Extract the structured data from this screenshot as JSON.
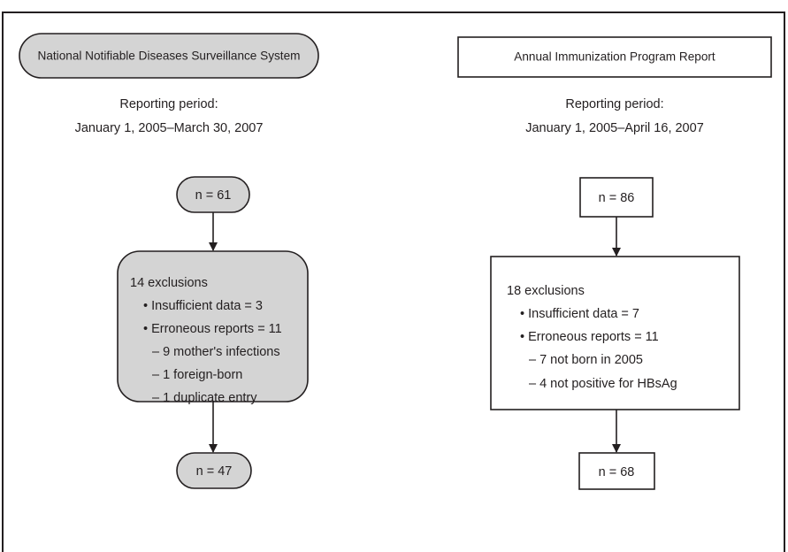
{
  "panels": [
    {
      "title": "National Notifiable Diseases Surveillance System",
      "period_label": "Reporting period:",
      "period": "January 1, 2005–March 30, 2007",
      "n_start": "n = 61",
      "exclusions": {
        "heading": "14 exclusions",
        "lines": [
          "• Insufficient data = 3",
          "• Erroneous reports = 11",
          "– 9 mother's infections",
          "– 1 foreign-born",
          "– 1 duplicate entry"
        ]
      },
      "n_end": "n = 47"
    },
    {
      "title": "Annual Immunization Program Report",
      "period_label": "Reporting period:",
      "period": "January 1, 2005–April 16, 2007",
      "n_start": "n = 86",
      "exclusions": {
        "heading": "18 exclusions",
        "lines": [
          "• Insufficient data = 7",
          "• Erroneous reports = 11",
          "– 7 not born in 2005",
          "– 4 not positive for HBsAg"
        ]
      },
      "n_end": "n = 68"
    }
  ]
}
